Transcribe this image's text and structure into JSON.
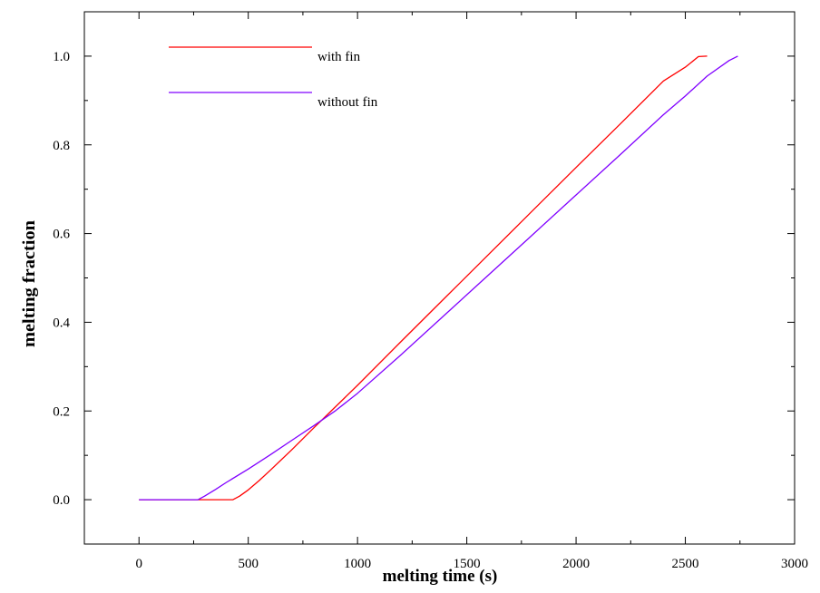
{
  "chart_data": {
    "type": "line",
    "title": "",
    "xlabel": "melting time (s)",
    "ylabel": "melting fraction",
    "xlim": [
      -250,
      3000
    ],
    "ylim": [
      -0.1,
      1.1
    ],
    "x_ticks": [
      0,
      500,
      1000,
      1500,
      2000,
      2500,
      3000
    ],
    "x_tick_labels": [
      "0",
      "500",
      "1000",
      "1500",
      "2000",
      "2500",
      "3000"
    ],
    "y_ticks": [
      0.0,
      0.2,
      0.4,
      0.6,
      0.8,
      1.0
    ],
    "y_tick_labels": [
      "0.0",
      "0.2",
      "0.4",
      "0.6",
      "0.8",
      "1.0"
    ],
    "grid": false,
    "legend_position": "top-left",
    "series": [
      {
        "name": "with fin",
        "color": "#ff0000",
        "points": [
          [
            0,
            0
          ],
          [
            430,
            0
          ],
          [
            460,
            0.008
          ],
          [
            500,
            0.022
          ],
          [
            550,
            0.043
          ],
          [
            600,
            0.066
          ],
          [
            700,
            0.113
          ],
          [
            800,
            0.162
          ],
          [
            900,
            0.21
          ],
          [
            1000,
            0.258
          ],
          [
            1200,
            0.357
          ],
          [
            1400,
            0.455
          ],
          [
            1600,
            0.553
          ],
          [
            1800,
            0.651
          ],
          [
            2000,
            0.749
          ],
          [
            2200,
            0.846
          ],
          [
            2400,
            0.944
          ],
          [
            2500,
            0.975
          ],
          [
            2560,
            0.999
          ],
          [
            2600,
            1.0
          ]
        ]
      },
      {
        "name": "without fin",
        "color": "#8000ff",
        "points": [
          [
            0,
            0
          ],
          [
            270,
            0
          ],
          [
            300,
            0.008
          ],
          [
            350,
            0.023
          ],
          [
            400,
            0.039
          ],
          [
            500,
            0.069
          ],
          [
            600,
            0.101
          ],
          [
            700,
            0.134
          ],
          [
            800,
            0.167
          ],
          [
            900,
            0.201
          ],
          [
            1000,
            0.24
          ],
          [
            1200,
            0.327
          ],
          [
            1400,
            0.417
          ],
          [
            1600,
            0.507
          ],
          [
            1800,
            0.597
          ],
          [
            2000,
            0.687
          ],
          [
            2200,
            0.777
          ],
          [
            2400,
            0.868
          ],
          [
            2500,
            0.91
          ],
          [
            2600,
            0.955
          ],
          [
            2700,
            0.99
          ],
          [
            2740,
            1.0
          ]
        ]
      }
    ]
  }
}
